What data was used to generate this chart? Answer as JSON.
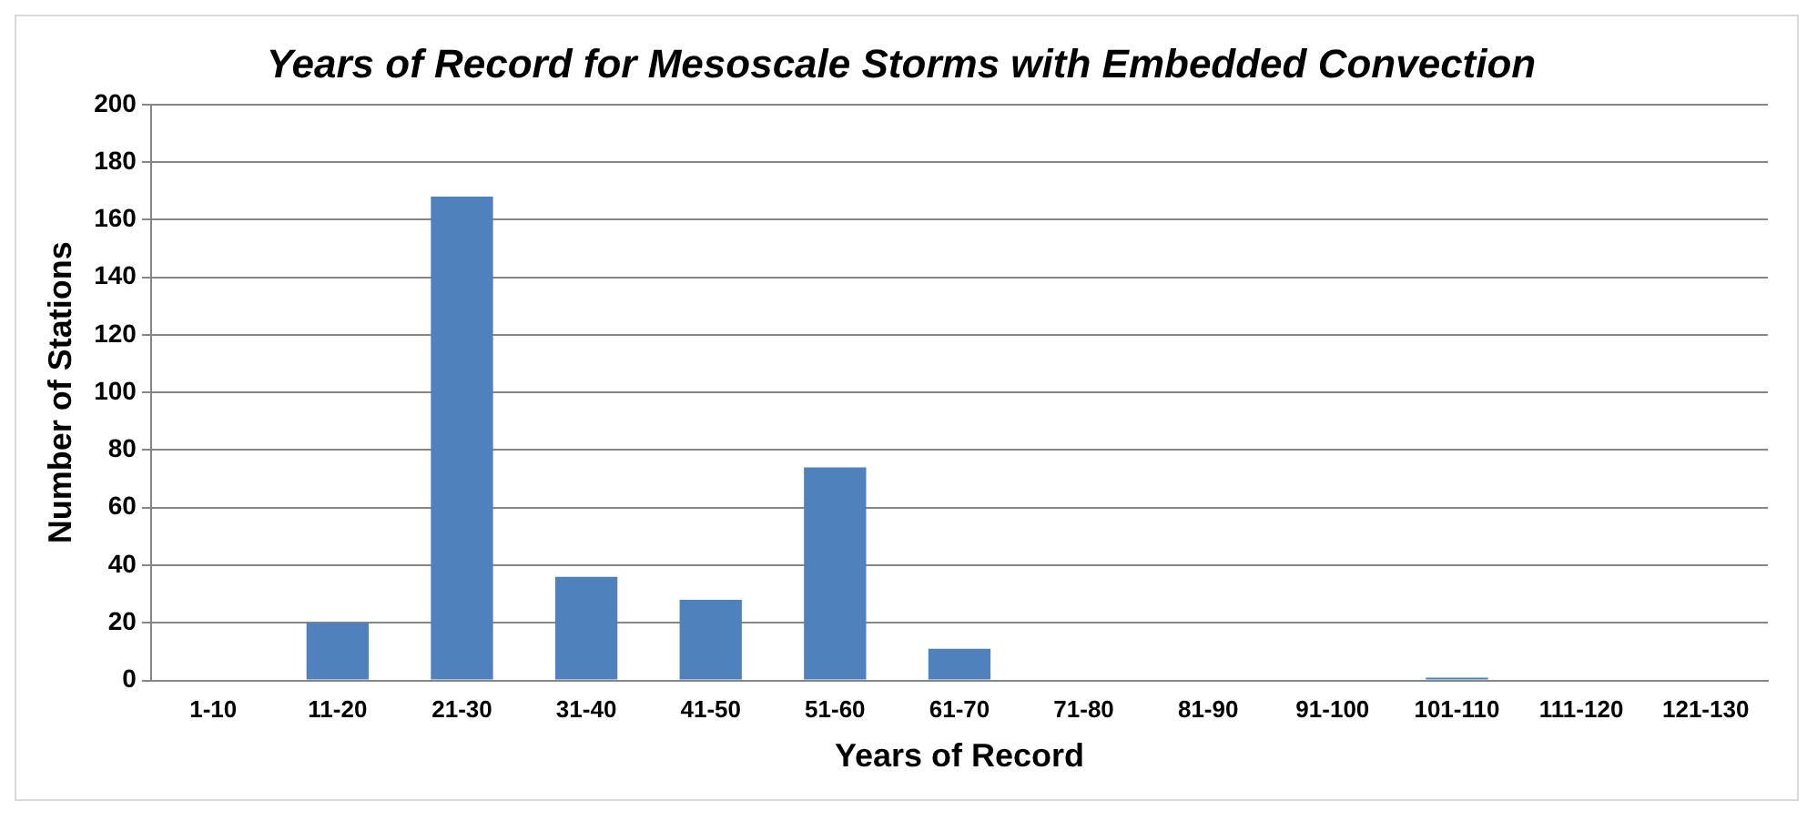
{
  "chart_data": {
    "type": "bar",
    "title": "Years of Record for Mesoscale Storms with Embedded Convection",
    "xlabel": "Years of Record",
    "ylabel": "Number of Stations",
    "categories": [
      "1-10",
      "11-20",
      "21-30",
      "31-40",
      "41-50",
      "51-60",
      "61-70",
      "71-80",
      "81-90",
      "91-100",
      "101-110",
      "111-120",
      "121-130"
    ],
    "values": [
      0,
      20,
      168,
      36,
      28,
      74,
      11,
      0,
      0,
      0,
      1,
      0,
      0
    ],
    "color": "#4f81bd",
    "ylim": [
      0,
      200
    ],
    "yticks": [
      0,
      20,
      40,
      60,
      80,
      100,
      120,
      140,
      160,
      180,
      200
    ],
    "grid": "y",
    "legend": false
  }
}
